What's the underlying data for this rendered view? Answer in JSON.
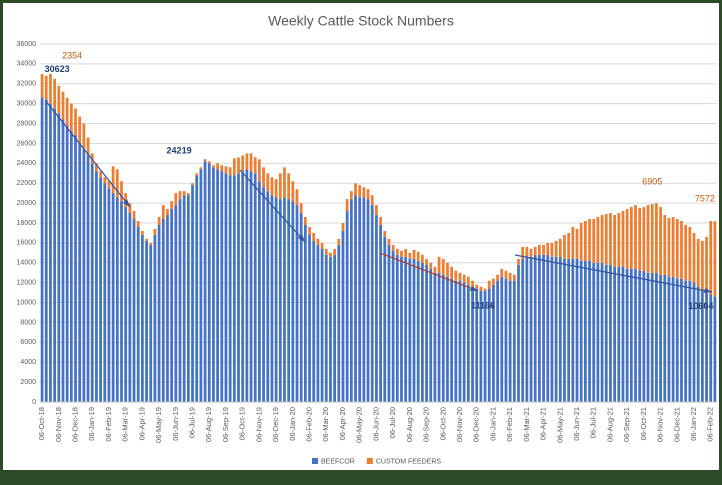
{
  "chart_data": {
    "type": "bar",
    "stacked": true,
    "title": "Weekly Cattle Stock Numbers",
    "categories": [
      "06-Oct-18",
      null,
      null,
      null,
      "06-Nov-18",
      null,
      null,
      null,
      "06-Dec-18",
      null,
      null,
      null,
      "06-Jan-19",
      null,
      null,
      null,
      "06-Feb-19",
      null,
      null,
      null,
      "06-Mar-19",
      null,
      null,
      null,
      "06-Apr-19",
      null,
      null,
      null,
      "06-May-19",
      null,
      null,
      null,
      "06-Jun-19",
      null,
      null,
      null,
      "06-Jul-19",
      null,
      null,
      null,
      "06-Aug-19",
      null,
      null,
      null,
      "06-Sep-19",
      null,
      null,
      null,
      "06-Oct-19",
      null,
      null,
      null,
      "06-Nov-19",
      null,
      null,
      null,
      "06-Dec-19",
      null,
      null,
      null,
      "06-Jan-20",
      null,
      null,
      null,
      "06-Feb-20",
      null,
      null,
      null,
      "06-Mar-20",
      null,
      null,
      null,
      "06-Apr-20",
      null,
      null,
      null,
      "06-May-20",
      null,
      null,
      null,
      "06-Jun-20",
      null,
      null,
      null,
      "06-Jul-20",
      null,
      null,
      null,
      "06-Aug-20",
      null,
      null,
      null,
      "06-Sep-20",
      null,
      null,
      null,
      "06-Oct-20",
      null,
      null,
      null,
      "06-Nov-20",
      null,
      null,
      null,
      "06-Dec-20",
      null,
      null,
      null,
      "06-Jan-21",
      null,
      null,
      null,
      "06-Feb-21",
      null,
      null,
      null,
      "06-Mar-21",
      null,
      null,
      null,
      "06-Apr-21",
      null,
      null,
      null,
      "06-May-21",
      null,
      null,
      null,
      "06-Jun-21",
      null,
      null,
      null,
      "06-Jul-21",
      null,
      null,
      null,
      "06-Aug-21",
      null,
      null,
      null,
      "06-Sep-21",
      null,
      null,
      null,
      "06-Oct-21",
      null,
      null,
      null,
      "06-Nov-21",
      null,
      null,
      null,
      "06-Dec-21",
      null,
      null,
      null,
      "06-Jan-22",
      null,
      null,
      null,
      "06-Feb-22",
      null
    ],
    "series": [
      {
        "name": "BEEFCOR",
        "color": "#4472c4",
        "values": [
          30623,
          30400,
          30000,
          29500,
          29000,
          28400,
          27800,
          27200,
          26800,
          26000,
          25400,
          24800,
          24000,
          23200,
          22600,
          22000,
          21500,
          21000,
          20600,
          20200,
          19600,
          19000,
          18400,
          17600,
          16800,
          16200,
          15800,
          16800,
          17800,
          18400,
          18800,
          19400,
          19800,
          20400,
          20800,
          20800,
          21800,
          22800,
          23400,
          24219,
          24000,
          23600,
          23400,
          23200,
          23000,
          22800,
          22800,
          23000,
          23200,
          23400,
          23200,
          23000,
          22200,
          21600,
          21200,
          20800,
          20600,
          20400,
          20600,
          20400,
          20200,
          19800,
          19000,
          17800,
          16800,
          16200,
          15800,
          15400,
          14800,
          14600,
          14800,
          15800,
          17200,
          19200,
          20400,
          20800,
          20600,
          20600,
          20400,
          19800,
          18800,
          17800,
          16600,
          15800,
          15200,
          14800,
          14600,
          14600,
          14400,
          14400,
          14200,
          14000,
          13800,
          13400,
          13000,
          13000,
          12800,
          12600,
          12400,
          12200,
          12200,
          12000,
          11800,
          11600,
          11400,
          11200,
          11166,
          11400,
          11800,
          12200,
          12600,
          12400,
          12200,
          12200,
          13800,
          14400,
          14600,
          14600,
          14800,
          14800,
          14800,
          14800,
          14600,
          14600,
          14600,
          14400,
          14400,
          14400,
          14400,
          14200,
          14200,
          14200,
          14000,
          14000,
          14000,
          13800,
          13800,
          13600,
          13600,
          13600,
          13400,
          13400,
          13400,
          13200,
          13200,
          13000,
          13000,
          13000,
          12800,
          12800,
          12600,
          12600,
          12400,
          12400,
          12200,
          12200,
          12000,
          11600,
          11200,
          11000,
          10800,
          10604
        ]
      },
      {
        "name": "CUSTOM FEEDERS",
        "color": "#ed7d31",
        "values": [
          2354,
          2400,
          3000,
          3000,
          2800,
          2800,
          2800,
          2800,
          2700,
          2700,
          2600,
          1800,
          1000,
          800,
          600,
          600,
          700,
          2700,
          2800,
          2000,
          1400,
          1000,
          800,
          600,
          400,
          200,
          200,
          600,
          800,
          1400,
          600,
          800,
          1200,
          800,
          400,
          200,
          200,
          200,
          200,
          200,
          200,
          200,
          600,
          600,
          700,
          800,
          1700,
          1600,
          1600,
          1600,
          1800,
          1600,
          2200,
          2000,
          1800,
          1800,
          1800,
          2600,
          3000,
          2600,
          2000,
          1600,
          1000,
          800,
          800,
          800,
          600,
          600,
          600,
          400,
          600,
          600,
          800,
          1200,
          800,
          1200,
          1200,
          1000,
          1000,
          1000,
          1000,
          800,
          600,
          600,
          600,
          600,
          600,
          800,
          600,
          900,
          900,
          800,
          600,
          600,
          600,
          1600,
          1600,
          1400,
          1200,
          1000,
          800,
          800,
          800,
          600,
          400,
          400,
          234,
          800,
          600,
          600,
          800,
          800,
          800,
          600,
          600,
          1200,
          1000,
          800,
          800,
          1000,
          1000,
          1200,
          1400,
          1600,
          1800,
          2400,
          2600,
          3200,
          3000,
          3800,
          4000,
          4200,
          4400,
          4600,
          4800,
          5100,
          5200,
          5200,
          5400,
          5600,
          6000,
          6200,
          6400,
          6300,
          6400,
          6800,
          6905,
          7000,
          6800,
          6000,
          5900,
          6000,
          6000,
          5800,
          5600,
          5400,
          5000,
          4800,
          5000,
          5600,
          7400,
          7572
        ]
      }
    ],
    "ylim": [
      0,
      36000
    ],
    "yticks": [
      0,
      2000,
      4000,
      6000,
      8000,
      10000,
      12000,
      14000,
      16000,
      18000,
      20000,
      22000,
      24000,
      26000,
      28000,
      30000,
      32000,
      34000,
      36000
    ],
    "grid": true,
    "legend": "bottom"
  }
}
